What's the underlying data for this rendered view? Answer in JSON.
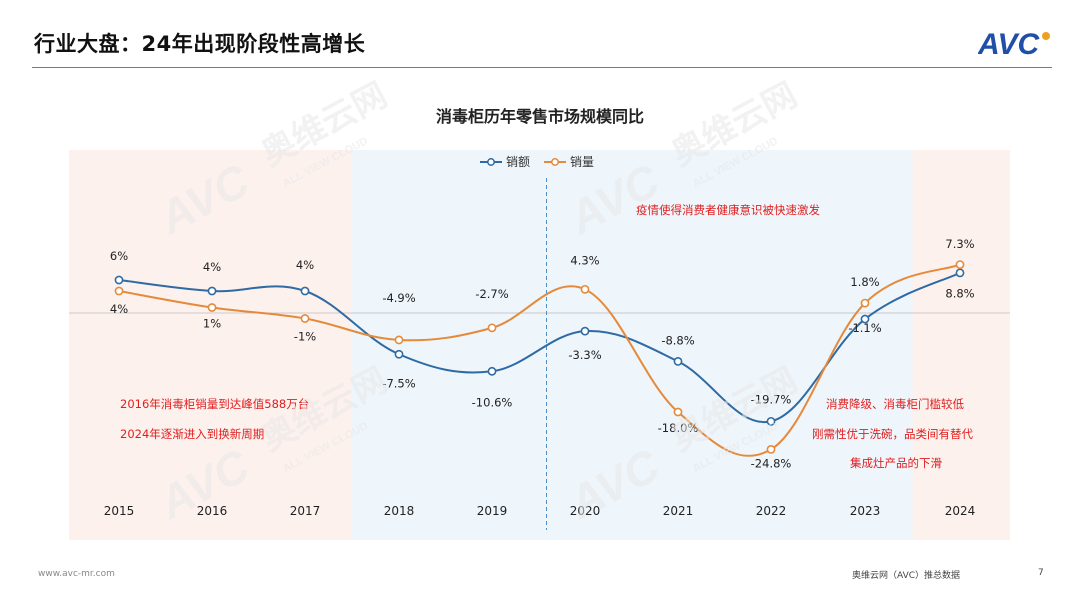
{
  "slide": {
    "title": "行业大盘：24年出现阶段性高增长",
    "footer_left": "www.avc-mr.com",
    "footer_mid": "奥维云网（AVC）推总数据",
    "page_number": "7"
  },
  "logo": {
    "text": "AVC"
  },
  "watermark": {
    "brand": "AVC",
    "cn": "奥维云网",
    "en": "ALL VIEW CLOUD"
  },
  "annotations": {
    "covid_note": "疫情使得消费者健康意识被快速激发",
    "left_note_1": "2016年消毒柜销量到达峰值588万台",
    "left_note_2": "2024年逐渐进入到换新周期",
    "right_note_1": "消费降级、消毒柜门槛较低",
    "right_note_2": "刚需性优于洗碗，品类间有替代",
    "right_note_3": "集成灶产品的下滑"
  },
  "colors": {
    "sales_value": "#2e6aa3",
    "sales_volume": "#e58a3a",
    "shade_pink": "#fdf1ee",
    "shade_blue": "#eef5fb",
    "note_red": "#e02020"
  },
  "chart_data": {
    "type": "line",
    "title": "消毒柜历年零售市场规模同比",
    "x": [
      "2015",
      "2016",
      "2017",
      "2018",
      "2019",
      "2020",
      "2021",
      "2022",
      "2023",
      "2024"
    ],
    "series": [
      {
        "name": "销额",
        "values": [
          6,
          4,
          4,
          -7.5,
          -10.6,
          -3.3,
          -8.8,
          -19.7,
          -1.1,
          7.3
        ],
        "labels": [
          "6%",
          "4%",
          "4%",
          "-7.5%",
          "-10.6%",
          "-3.3%",
          "-8.8%",
          "-19.7%",
          "-1.1%",
          "7.3%"
        ]
      },
      {
        "name": "销量",
        "values": [
          4,
          1,
          -1,
          -4.9,
          -2.7,
          4.3,
          -18.0,
          -24.8,
          1.8,
          8.8
        ],
        "labels": [
          "4%",
          "1%",
          "-1%",
          "-4.9%",
          "-2.7%",
          "4.3%",
          "-18.0%",
          "-24.8%",
          "1.8%",
          "8.8%"
        ]
      }
    ],
    "legend_position": "top-center",
    "shaded_periods": [
      {
        "from": "2015",
        "to": "2017",
        "tone": "pink"
      },
      {
        "from": "2018",
        "to": "2023",
        "tone": "blue"
      },
      {
        "from": "2024",
        "to": "2024",
        "tone": "pink"
      }
    ],
    "reference_line": {
      "type": "vertical-dashed",
      "between": [
        "2019",
        "2020"
      ]
    }
  }
}
